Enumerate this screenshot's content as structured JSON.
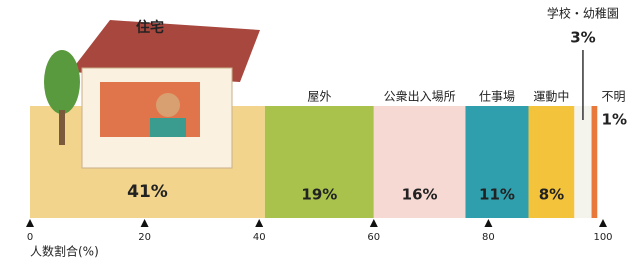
{
  "chart_data": {
    "type": "stacked-bar",
    "categories": [
      "住宅",
      "屋外",
      "公衆出入場所",
      "仕事場",
      "運動中",
      "学校・幼稚園",
      "不明"
    ],
    "values": [
      41,
      19,
      16,
      11,
      8,
      3,
      1
    ],
    "value_labels": [
      "41%",
      "19%",
      "16%",
      "11%",
      "8%",
      "3%",
      "1%"
    ],
    "colors": [
      "#f2d48c",
      "#a8c24c",
      "#f7d9d3",
      "#2f9fae",
      "#f4c33c",
      "#f4f3ec",
      "#e9793b"
    ],
    "xlim": [
      0,
      100
    ],
    "xticks": [
      0,
      20,
      40,
      60,
      80,
      100
    ],
    "xlabel": "人数割合(%)"
  }
}
